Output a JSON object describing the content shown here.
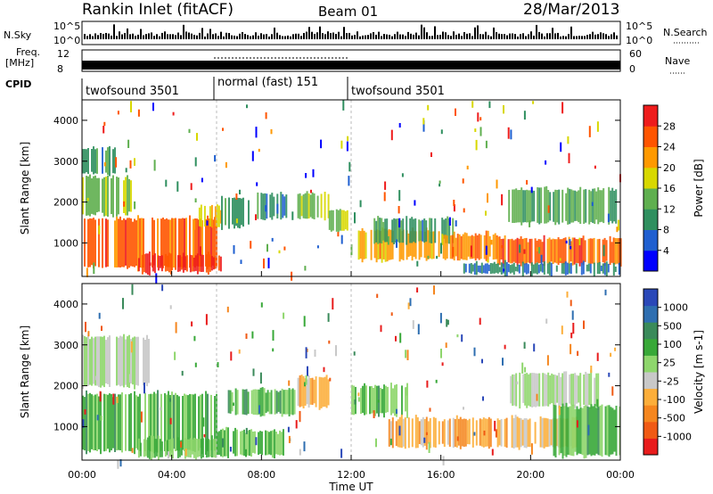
{
  "header": {
    "station": "Rankin Inlet (fitACF)",
    "beam": "Beam 01",
    "date": "28/Mar/2013"
  },
  "top_panels": {
    "nsky_label": "N.Sky",
    "nsky_ticks": [
      "10^5",
      "10^0"
    ],
    "nsearch_label": "N.Search",
    "nsearch_ticks": [
      "10^5",
      "10^0"
    ],
    "freq_label_line1": "Freq.",
    "freq_label_line2": "[MHz]",
    "freq_ticks": [
      "12",
      "8"
    ],
    "nave_label": "Nave",
    "nave_ticks": [
      "60",
      "0"
    ],
    "cpid_label": "CPID",
    "cpid_segments": [
      {
        "label": "twofsound 3501",
        "start_hour": 0,
        "end_hour": 6
      },
      {
        "label": "normal (fast) 151",
        "start_hour": 6,
        "end_hour": 12
      },
      {
        "label": "twofsound 3501",
        "start_hour": 12,
        "end_hour": 24
      }
    ]
  },
  "colors": {
    "power_scale": [
      "#0000ff",
      "#1f5fd0",
      "#2f8f5f",
      "#5faf4f",
      "#d8d800",
      "#ff9900",
      "#ff5500",
      "#ee1c1c"
    ],
    "velocity_scale": [
      "#e81c1c",
      "#f05a14",
      "#f5861e",
      "#fcae3a",
      "#c8c8c8",
      "#8ed66c",
      "#38a838",
      "#3a8a5a",
      "#2e6eb0",
      "#2a48b8"
    ]
  },
  "chart_data": [
    {
      "type": "heatmap",
      "name": "power",
      "ylabel": "Slant Range [km]",
      "xlabel": "",
      "x_ticks": [
        "00:00",
        "04:00",
        "08:00",
        "12:00",
        "16:00",
        "20:00",
        "00:00"
      ],
      "x_range_hours": [
        0,
        24
      ],
      "y_ticks": [
        1000,
        2000,
        3000,
        4000
      ],
      "ylim": [
        180,
        4500
      ],
      "colorbar_label": "Power [dB]",
      "colorbar_ticks": [
        "4",
        "8",
        "12",
        "16",
        "20",
        "24",
        "28"
      ],
      "colorbar_range": [
        0,
        30
      ],
      "regions": [
        {
          "t0": 0.0,
          "t1": 6.0,
          "r0": 400,
          "r1": 1600,
          "level": 24
        },
        {
          "t0": 0.0,
          "t1": 2.2,
          "r0": 1700,
          "r1": 2600,
          "level": 14
        },
        {
          "t0": 0.0,
          "t1": 1.5,
          "r0": 2700,
          "r1": 3300,
          "level": 10
        },
        {
          "t0": 2.5,
          "t1": 6.2,
          "r0": 300,
          "r1": 700,
          "level": 27
        },
        {
          "t0": 5.2,
          "t1": 6.2,
          "r0": 1400,
          "r1": 1900,
          "level": 18
        },
        {
          "t0": 6.2,
          "t1": 7.5,
          "r0": 1400,
          "r1": 2100,
          "level": 10
        },
        {
          "t0": 7.8,
          "t1": 9.2,
          "r0": 1600,
          "r1": 2200,
          "level": 9
        },
        {
          "t0": 9.6,
          "t1": 11.0,
          "r0": 1600,
          "r1": 2200,
          "level": 14
        },
        {
          "t0": 11.0,
          "t1": 11.8,
          "r0": 1300,
          "r1": 1800,
          "level": 15
        },
        {
          "t0": 12.3,
          "t1": 16.0,
          "r0": 600,
          "r1": 1300,
          "level": 20
        },
        {
          "t0": 13.0,
          "t1": 16.5,
          "r0": 1000,
          "r1": 1600,
          "level": 10
        },
        {
          "t0": 16.0,
          "t1": 18.5,
          "r0": 600,
          "r1": 1200,
          "level": 22
        },
        {
          "t0": 18.5,
          "t1": 24.0,
          "r0": 500,
          "r1": 1100,
          "level": 24
        },
        {
          "t0": 19.0,
          "t1": 24.0,
          "r0": 1500,
          "r1": 2300,
          "level": 12
        },
        {
          "t0": 17.0,
          "t1": 24.0,
          "r0": 250,
          "r1": 500,
          "level": 8
        }
      ]
    },
    {
      "type": "heatmap",
      "name": "velocity",
      "ylabel": "Slant Range [km]",
      "xlabel": "Time UT",
      "x_ticks": [
        "00:00",
        "04:00",
        "08:00",
        "12:00",
        "16:00",
        "20:00",
        "00:00"
      ],
      "x_range_hours": [
        0,
        24
      ],
      "y_ticks": [
        1000,
        2000,
        3000,
        4000
      ],
      "ylim": [
        180,
        4500
      ],
      "colorbar_label": "Velocity [m s-1]",
      "colorbar_ticks": [
        "-1000",
        "-500",
        "-100",
        "-25",
        "25",
        "100",
        "500",
        "1000"
      ],
      "colorbar_range": [
        -1200,
        1200
      ],
      "regions": [
        {
          "t0": 0.0,
          "t1": 6.0,
          "r0": 400,
          "r1": 1800,
          "level": 300
        },
        {
          "t0": 0.0,
          "t1": 3.0,
          "r0": 2000,
          "r1": 3200,
          "level": 0
        },
        {
          "t0": 2.5,
          "t1": 6.0,
          "r0": 250,
          "r1": 700,
          "level": 250
        },
        {
          "t0": 6.0,
          "t1": 9.0,
          "r0": 300,
          "r1": 900,
          "level": 250
        },
        {
          "t0": 6.5,
          "t1": 9.5,
          "r0": 1300,
          "r1": 1900,
          "level": 300
        },
        {
          "t0": 9.6,
          "t1": 11.0,
          "r0": 1500,
          "r1": 2200,
          "level": -300
        },
        {
          "t0": 12.0,
          "t1": 14.5,
          "r0": 1300,
          "r1": 2000,
          "level": 300
        },
        {
          "t0": 13.5,
          "t1": 18.5,
          "r0": 500,
          "r1": 1200,
          "level": -400
        },
        {
          "t0": 18.5,
          "t1": 22.0,
          "r0": 500,
          "r1": 1200,
          "level": -300
        },
        {
          "t0": 19.0,
          "t1": 23.0,
          "r0": 1500,
          "r1": 2300,
          "level": 0
        },
        {
          "t0": 21.0,
          "t1": 24.0,
          "r0": 300,
          "r1": 1500,
          "level": 300
        }
      ]
    }
  ]
}
